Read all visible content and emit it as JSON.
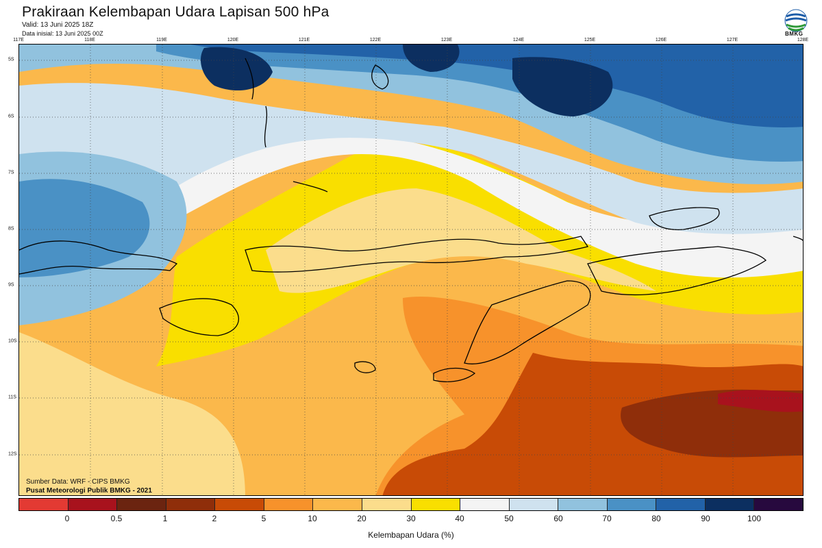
{
  "header": {
    "title": "Prakiraan Kelembapan Udara Lapisan 500 hPa",
    "valid": "Valid: 13 Juni 2025 18Z",
    "initial": "Data inisial: 13 Juni 2025 00Z",
    "logo_text": "BMKG"
  },
  "axes": {
    "lon_labels": [
      "117E",
      "118E",
      "119E",
      "120E",
      "121E",
      "122E",
      "123E",
      "124E",
      "125E",
      "126E",
      "127E",
      "128E"
    ],
    "lat_labels": [
      "5S",
      "6S",
      "7S",
      "8S",
      "9S",
      "10S",
      "11S",
      "12S"
    ]
  },
  "credits": {
    "source": "Sumber Data: WRF - CIPS BMKG",
    "org": "Pusat Meteorologi Publik BMKG - 2021"
  },
  "legend": {
    "title": "Kelembapan Udara (%)",
    "labels": [
      "0",
      "0.5",
      "1",
      "2",
      "5",
      "10",
      "20",
      "30",
      "40",
      "50",
      "60",
      "70",
      "80",
      "90",
      "100"
    ],
    "colors": [
      "#e33a33",
      "#a8121d",
      "#6b2410",
      "#8f2e0a",
      "#c84b06",
      "#f7922b",
      "#fbb84b",
      "#fbdd8c",
      "#f9df00",
      "#f4f4f4",
      "#cfe2ef",
      "#91c2de",
      "#4a91c5",
      "#2262a8",
      "#0c2f60",
      "#27093e"
    ]
  }
}
